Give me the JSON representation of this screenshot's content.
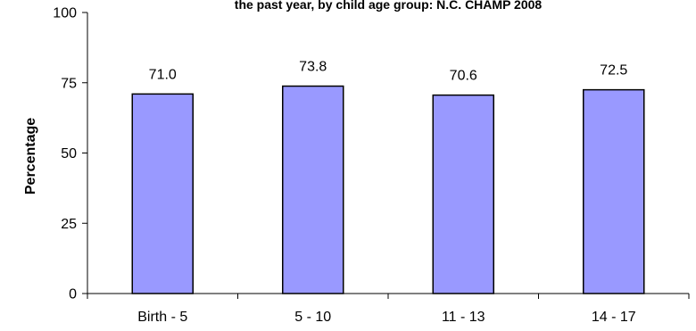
{
  "chart_data": {
    "type": "bar",
    "title": "the past year, by child age group: N.C. CHAMP 2008",
    "xlabel": "",
    "ylabel": "Percentage",
    "categories": [
      "Birth - 5",
      "5 - 10",
      "11 - 13",
      "14 - 17"
    ],
    "values": [
      71.0,
      73.8,
      70.6,
      72.5
    ],
    "data_labels": [
      "71.0",
      "73.8",
      "70.6",
      "72.5"
    ],
    "ylim": [
      0,
      100
    ],
    "yticks": [
      0,
      25,
      50,
      75,
      100
    ],
    "grid": false,
    "legend": "none",
    "bar_color": "#9999ff",
    "bar_edge_color": "#000000"
  }
}
